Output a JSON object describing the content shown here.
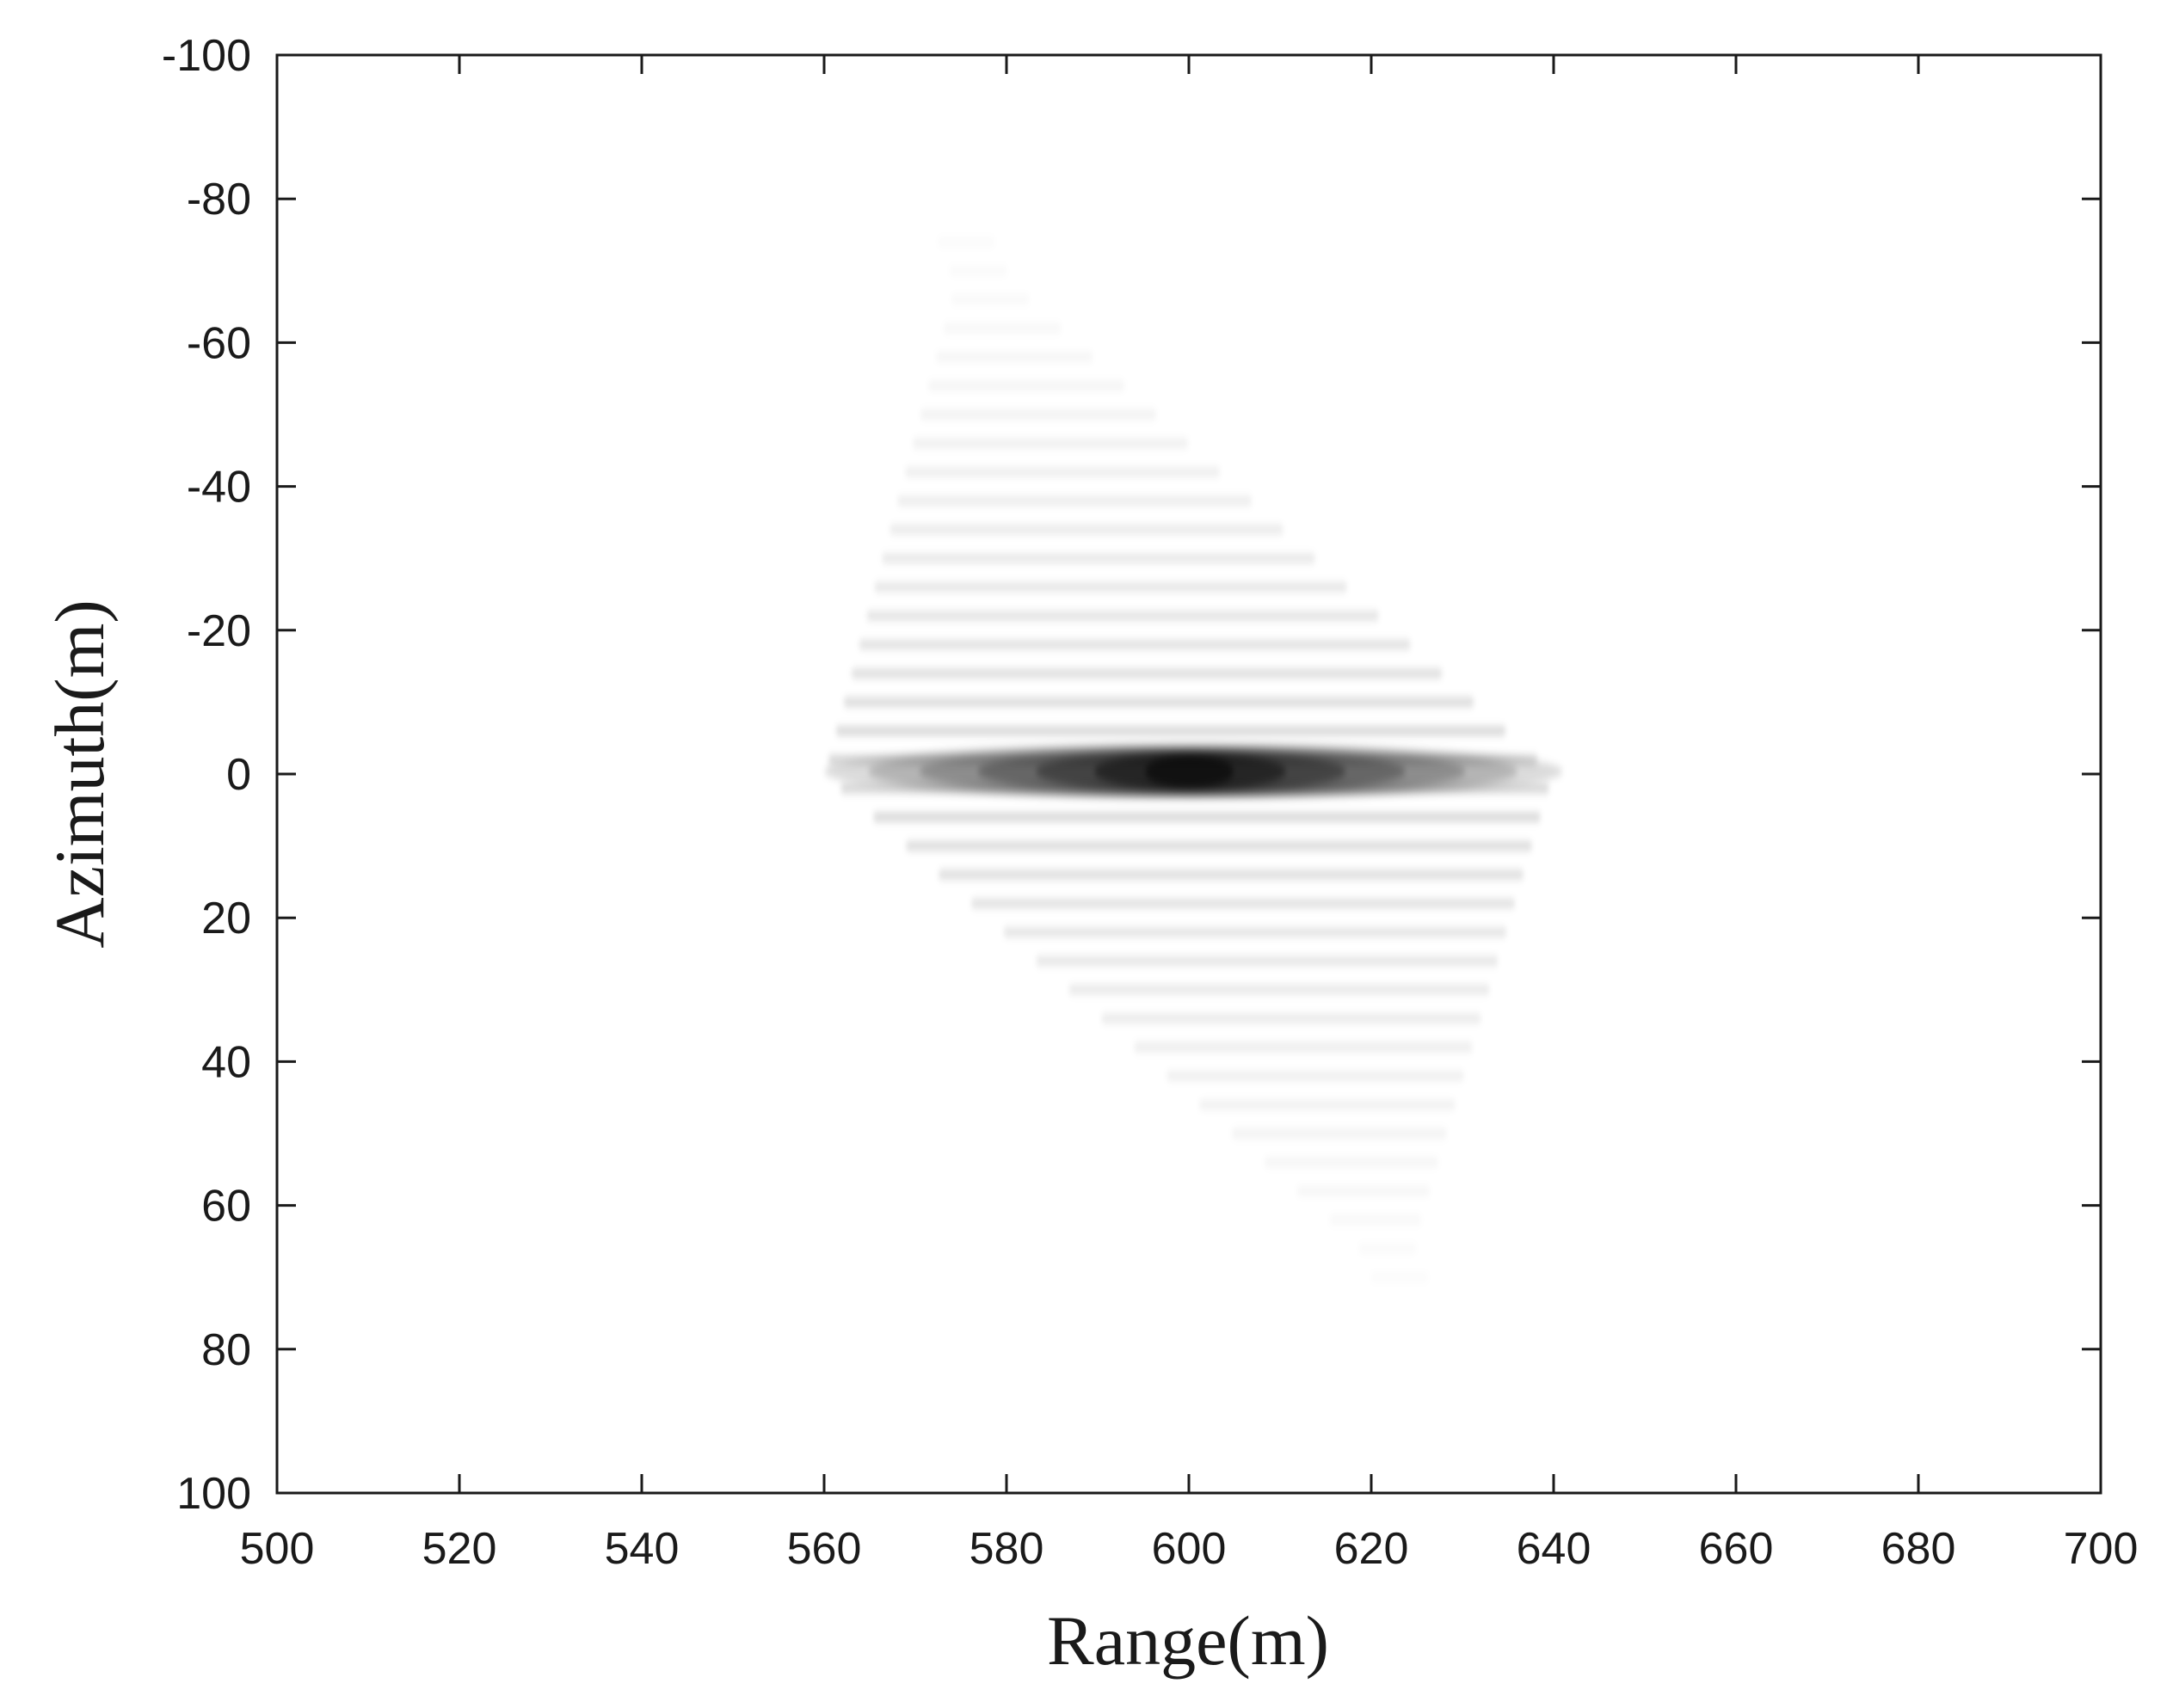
{
  "chart_data": {
    "type": "heatmap",
    "title": "",
    "xlabel": "Range(m)",
    "ylabel": "Azimuth(m)",
    "xlim": [
      500,
      700
    ],
    "ylim": [
      -100,
      100
    ],
    "y_direction": "reversed (-100 at top, 100 at bottom)",
    "x_ticks": [
      500,
      520,
      540,
      560,
      580,
      600,
      620,
      640,
      660,
      680,
      700
    ],
    "y_ticks": [
      -100,
      -80,
      -60,
      -40,
      -20,
      0,
      20,
      40,
      60,
      80,
      100
    ],
    "x_tick_labels": [
      "500",
      "520",
      "540",
      "560",
      "580",
      "600",
      "620",
      "640",
      "660",
      "680",
      "700"
    ],
    "y_tick_labels": [
      "-100",
      "-80",
      "-60",
      "-40",
      "-20",
      "0",
      "20",
      "40",
      "60",
      "80",
      "100"
    ],
    "colormap": "grayscale (white = low, black = high)",
    "grid": false,
    "legend": "none",
    "point_target": {
      "peak_range_m": 600,
      "peak_azimuth_m": 0,
      "mainlobe_range_extent_m": [
        560,
        641
      ],
      "mainlobe_azimuth_halfwidth_m": 2,
      "sidelobe_azimuth_extent_m": [
        -74,
        71
      ],
      "sidelobe_spacing_m": 4,
      "sidelobe_skew_m_per_m": 0.33,
      "sidelobe_range_halfwidth_max_m": 40
    }
  },
  "colors": {
    "axis": "#1a1a1a",
    "background": "#ffffff",
    "peak": "#000000"
  }
}
